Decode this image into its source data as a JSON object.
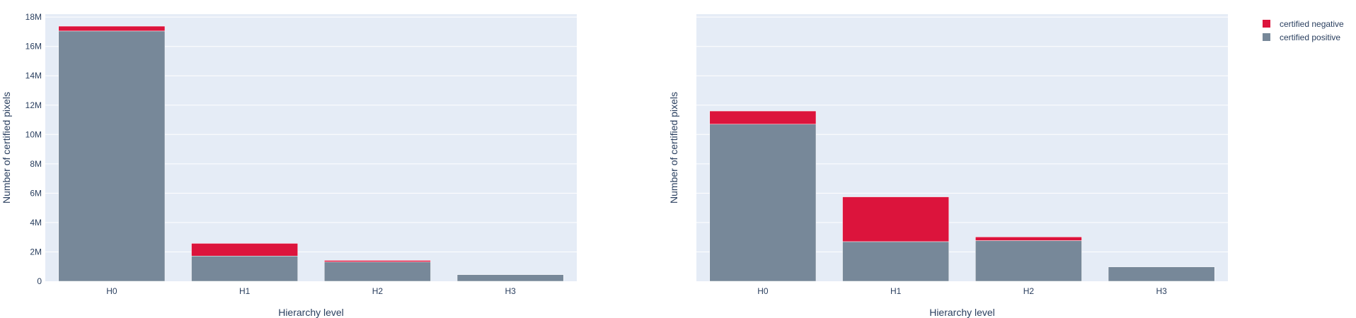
{
  "colors": {
    "certified_negative": "#dc143c",
    "certified_positive": "#778899",
    "plot_bg": "#e5ecf6",
    "grid": "#ffffff",
    "text": "#2a3f5f"
  },
  "legend": {
    "placement": "top-right",
    "items": [
      {
        "name": "certified negative",
        "color": "#dc143c"
      },
      {
        "name": "certified positive",
        "color": "#778899"
      }
    ]
  },
  "chart_data": [
    {
      "type": "bar",
      "barmode": "stack",
      "categories": [
        "H0",
        "H1",
        "H2",
        "H3"
      ],
      "series": [
        {
          "name": "certified positive",
          "values": [
            17050000,
            1720000,
            1320000,
            450000
          ]
        },
        {
          "name": "certified negative",
          "values": [
            330000,
            860000,
            100000,
            0
          ]
        }
      ],
      "xlabel": "Hierarchy level",
      "ylabel": "Number of certified pixels",
      "ylim": [
        0,
        18200000
      ],
      "yticks": [
        {
          "value": 0,
          "label": "0"
        },
        {
          "value": 2000000,
          "label": "2M"
        },
        {
          "value": 4000000,
          "label": "4M"
        },
        {
          "value": 6000000,
          "label": "6M"
        },
        {
          "value": 8000000,
          "label": "8M"
        },
        {
          "value": 10000000,
          "label": "10M"
        },
        {
          "value": 12000000,
          "label": "12M"
        },
        {
          "value": 14000000,
          "label": "14M"
        },
        {
          "value": 16000000,
          "label": "16M"
        },
        {
          "value": 18000000,
          "label": "18M"
        }
      ],
      "show_ytick_labels": true,
      "grid": true
    },
    {
      "type": "bar",
      "barmode": "stack",
      "categories": [
        "H0",
        "H1",
        "H2",
        "H3"
      ],
      "series": [
        {
          "name": "certified positive",
          "values": [
            10700000,
            2700000,
            2770000,
            980000
          ]
        },
        {
          "name": "certified negative",
          "values": [
            900000,
            3050000,
            250000,
            0
          ]
        }
      ],
      "xlabel": "Hierarchy level",
      "ylabel": "Number of certified pixels",
      "ylim": [
        0,
        18200000
      ],
      "yticks": [
        {
          "value": 0,
          "label": ""
        },
        {
          "value": 2000000,
          "label": ""
        },
        {
          "value": 4000000,
          "label": ""
        },
        {
          "value": 6000000,
          "label": ""
        },
        {
          "value": 8000000,
          "label": ""
        },
        {
          "value": 10000000,
          "label": ""
        },
        {
          "value": 12000000,
          "label": ""
        },
        {
          "value": 14000000,
          "label": ""
        },
        {
          "value": 16000000,
          "label": ""
        },
        {
          "value": 18000000,
          "label": ""
        }
      ],
      "show_ytick_labels": false,
      "grid": true
    }
  ]
}
